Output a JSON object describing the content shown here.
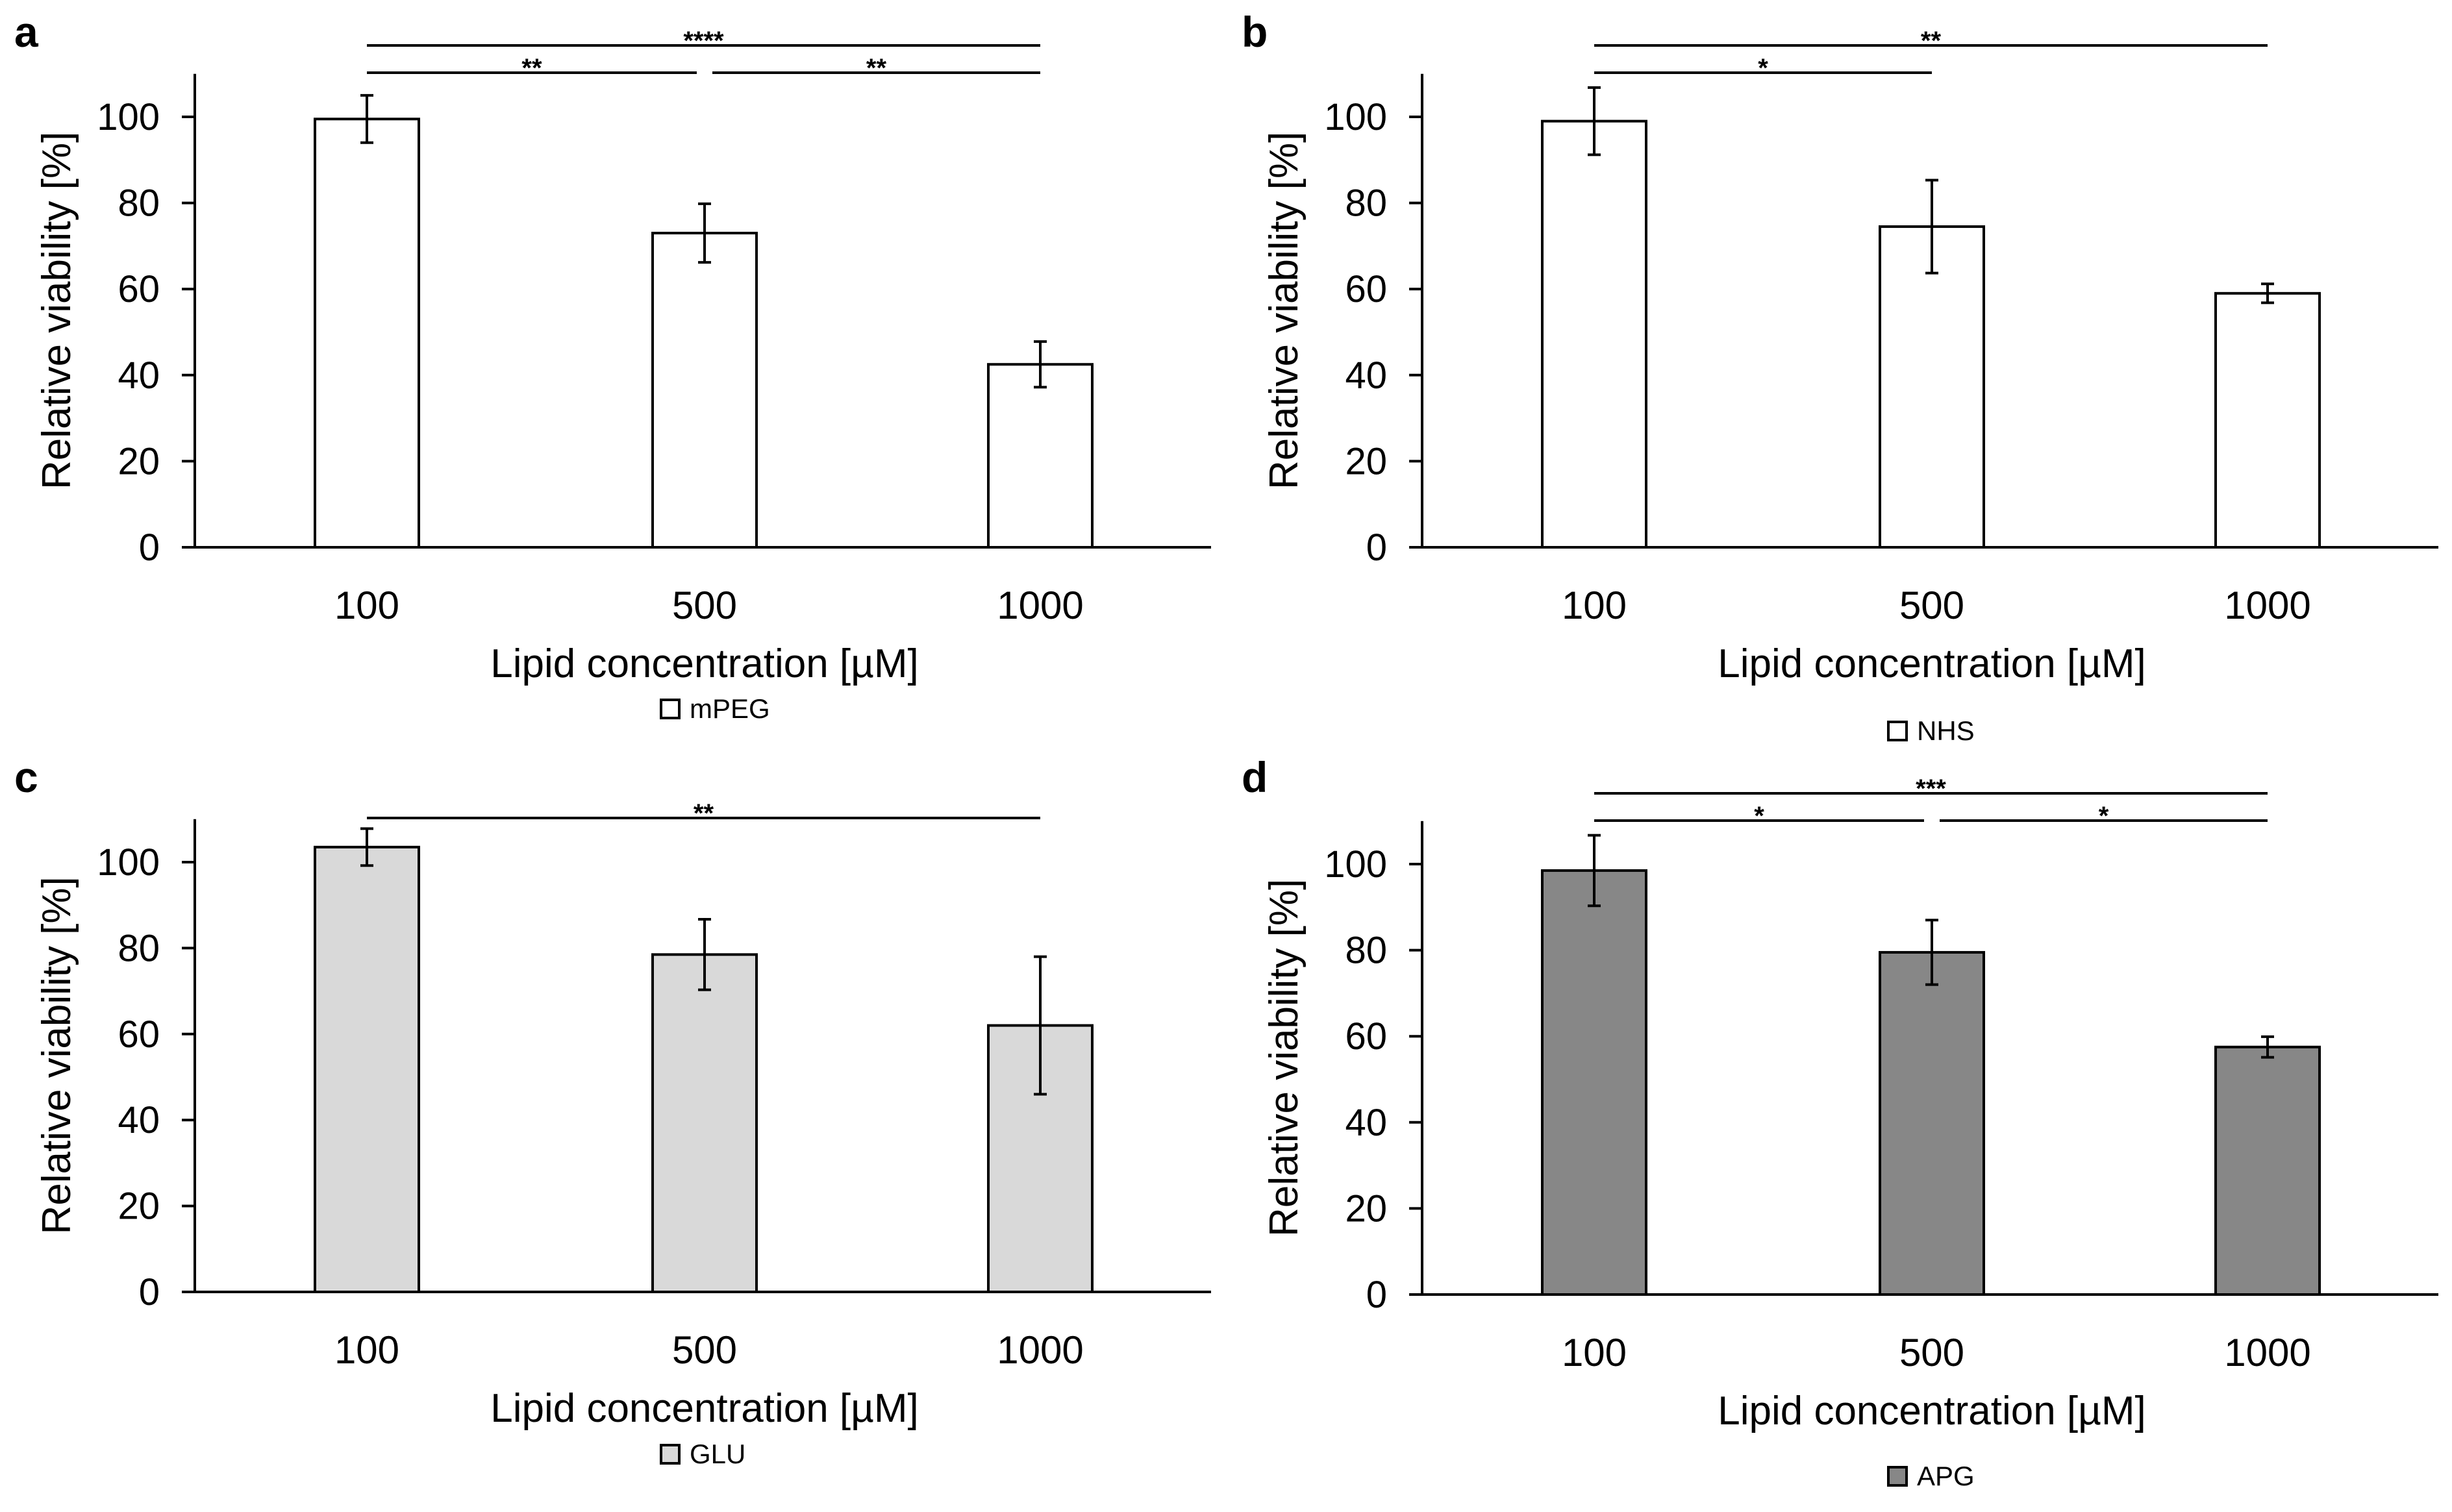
{
  "figure_title": "",
  "chart_data": [
    {
      "panel": "a",
      "type": "bar",
      "categories": [
        "100",
        "500",
        "1000"
      ],
      "series": [
        {
          "name": "mPEG",
          "values": [
            99.5,
            73,
            42.5
          ],
          "errors": [
            5.5,
            6.8,
            5.3
          ],
          "color": "#ffffff"
        }
      ],
      "title": "",
      "xlabel": "Lipid concentration [µM]",
      "ylabel": "Relative viability [%]",
      "ylim": [
        0,
        110
      ],
      "yticks": [
        0,
        20,
        40,
        60,
        80,
        100
      ],
      "legend": "bottom-center",
      "significance": [
        {
          "from": 0,
          "to": 2,
          "label": "****",
          "level": 2
        },
        {
          "from": 0,
          "to": 1,
          "label": "**",
          "level": 1
        },
        {
          "from": 1,
          "to": 2,
          "label": "**",
          "level": 1
        }
      ]
    },
    {
      "panel": "b",
      "type": "bar",
      "categories": [
        "100",
        "500",
        "1000"
      ],
      "series": [
        {
          "name": "NHS",
          "values": [
            99,
            74.5,
            59
          ],
          "errors": [
            7.8,
            10.8,
            2.2
          ],
          "color": "#ffffff"
        }
      ],
      "title": "",
      "xlabel": "Lipid concentration [µM]",
      "ylabel": "Relative viability [%]",
      "ylim": [
        0,
        110
      ],
      "yticks": [
        0,
        20,
        40,
        60,
        80,
        100
      ],
      "legend": "bottom-center",
      "significance": [
        {
          "from": 0,
          "to": 2,
          "label": "**",
          "level": 2
        },
        {
          "from": 0,
          "to": 1,
          "label": "*",
          "level": 1
        }
      ]
    },
    {
      "panel": "c",
      "type": "bar",
      "categories": [
        "100",
        "500",
        "1000"
      ],
      "series": [
        {
          "name": "GLU",
          "values": [
            103.5,
            78.5,
            62
          ],
          "errors": [
            4.3,
            8.2,
            16
          ],
          "color": "#d9d9d9"
        }
      ],
      "title": "",
      "xlabel": "Lipid concentration [µM]",
      "ylabel": "Relative viability [%]",
      "ylim": [
        0,
        110
      ],
      "yticks": [
        0,
        20,
        40,
        60,
        80,
        100
      ],
      "legend": "bottom-center",
      "significance": [
        {
          "from": 0,
          "to": 2,
          "label": "**",
          "level": 1
        }
      ]
    },
    {
      "panel": "d",
      "type": "bar",
      "categories": [
        "100",
        "500",
        "1000"
      ],
      "series": [
        {
          "name": "APG",
          "values": [
            98.5,
            79.5,
            57.5
          ],
          "errors": [
            8.2,
            7.5,
            2.4
          ],
          "color": "#878787"
        }
      ],
      "title": "",
      "xlabel": "Lipid concentration [µM]",
      "ylabel": "Relative viability [%]",
      "ylim": [
        0,
        110
      ],
      "yticks": [
        0,
        20,
        40,
        60,
        80,
        100
      ],
      "legend": "bottom-center",
      "significance": [
        {
          "from": 0,
          "to": 2,
          "label": "***",
          "level": 2
        },
        {
          "from": 0,
          "to": 1,
          "label": "*",
          "level": 1
        },
        {
          "from": 1,
          "to": 2,
          "label": "*",
          "level": 1
        }
      ]
    }
  ]
}
